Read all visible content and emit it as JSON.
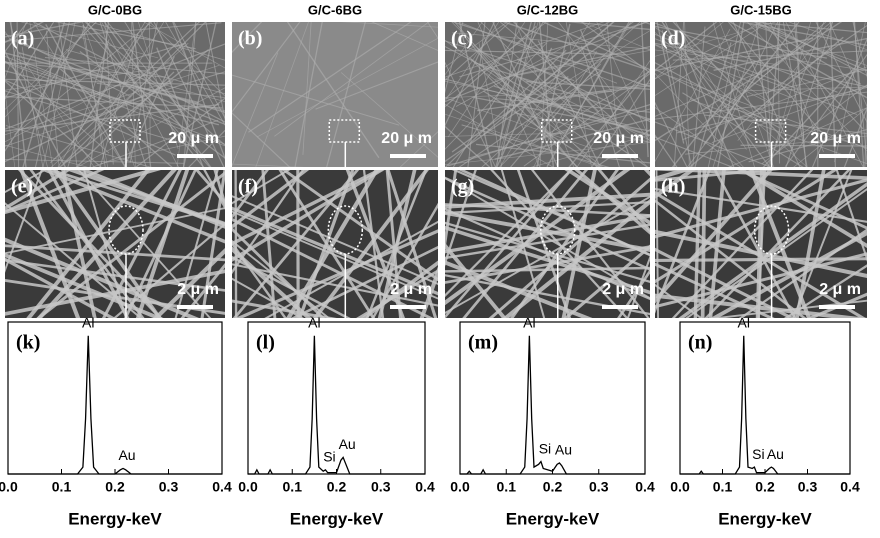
{
  "columns": [
    "G/C-0BG",
    "G/C-6BG",
    "G/C-12BG",
    "G/C-15BG"
  ],
  "images": [
    {
      "label": "(a)",
      "scale": "20 μ m"
    },
    {
      "label": "(b)",
      "scale": "20 μ m"
    },
    {
      "label": "(c)",
      "scale": "20 μ m"
    },
    {
      "label": "(d)",
      "scale": "20 μ m"
    },
    {
      "label": "(e)",
      "scale": "2 μ m"
    },
    {
      "label": "(f)",
      "scale": "2 μ m"
    },
    {
      "label": "(g)",
      "scale": "2 μ m"
    },
    {
      "label": "(h)",
      "scale": "2 μ m"
    }
  ],
  "chart_data": [
    {
      "type": "line",
      "title": "(k)",
      "x_label": "Energy-keV",
      "xlim": [
        0,
        0.4
      ],
      "ylim": [
        0,
        110
      ],
      "xticks": [
        {
          "value": 0,
          "label": "0.0"
        },
        0.1,
        0.2,
        0.3,
        0.4
      ],
      "color": "#000000",
      "x": [
        0,
        0.13,
        0.14,
        0.145,
        0.15,
        0.155,
        0.16,
        0.17,
        0.2,
        0.21,
        0.215,
        0.22,
        0.23,
        0.4
      ],
      "values": [
        0,
        0,
        5,
        40,
        100,
        40,
        5,
        0,
        0,
        3,
        4,
        3,
        0,
        0
      ],
      "annotations": [
        {
          "text": "Al",
          "x": 0.15,
          "y": 100
        },
        {
          "text": "Au",
          "x": 0.215,
          "y": 4
        }
      ]
    },
    {
      "type": "line",
      "title": "(l)",
      "x_label": "Energy-keV",
      "xlim": [
        0,
        0.4
      ],
      "ylim": [
        0,
        110
      ],
      "xticks": [
        {
          "value": 0,
          "label": "0.0"
        },
        0.1,
        0.2,
        0.3,
        0.4
      ],
      "color": "#000000",
      "x": [
        0,
        0.015,
        0.02,
        0.025,
        0.045,
        0.05,
        0.055,
        0.13,
        0.14,
        0.145,
        0.15,
        0.155,
        0.16,
        0.17,
        0.175,
        0.18,
        0.2,
        0.21,
        0.215,
        0.22,
        0.23,
        0.4
      ],
      "values": [
        0,
        0,
        3,
        0,
        0,
        3,
        0,
        0,
        5,
        40,
        100,
        40,
        5,
        2,
        3,
        1,
        1,
        10,
        12,
        8,
        0,
        0
      ],
      "annotations": [
        {
          "text": "Al",
          "x": 0.15,
          "y": 100
        },
        {
          "text": "Si",
          "x": 0.175,
          "y": 3
        },
        {
          "text": "Au",
          "x": 0.215,
          "y": 12
        }
      ]
    },
    {
      "type": "line",
      "title": "(m)",
      "x_label": "Energy-keV",
      "xlim": [
        0,
        0.4
      ],
      "ylim": [
        0,
        110
      ],
      "xticks": [
        {
          "value": 0,
          "label": "0.0"
        },
        0.1,
        0.2,
        0.3,
        0.4
      ],
      "color": "#000000",
      "x": [
        0,
        0.015,
        0.02,
        0.025,
        0.045,
        0.05,
        0.055,
        0.13,
        0.14,
        0.145,
        0.15,
        0.155,
        0.16,
        0.17,
        0.175,
        0.18,
        0.2,
        0.21,
        0.215,
        0.22,
        0.23,
        0.4
      ],
      "values": [
        0,
        0,
        2,
        0,
        0,
        3,
        0,
        0,
        5,
        40,
        100,
        40,
        5,
        7,
        9,
        4,
        2,
        7,
        8,
        6,
        0,
        0
      ],
      "annotations": [
        {
          "text": "Si",
          "x": 0.175,
          "y": 9
        },
        {
          "text": "Al",
          "x": 0.15,
          "y": 100
        },
        {
          "text": "Au",
          "x": 0.215,
          "y": 8
        }
      ]
    },
    {
      "type": "line",
      "title": "(n)",
      "x_label": "Energy-keV",
      "xlim": [
        0,
        0.4
      ],
      "ylim": [
        0,
        110
      ],
      "xticks": [
        {
          "value": 0,
          "label": "0.0"
        },
        0.1,
        0.2,
        0.3,
        0.4
      ],
      "color": "#000000",
      "x": [
        0,
        0.045,
        0.05,
        0.055,
        0.13,
        0.14,
        0.145,
        0.15,
        0.155,
        0.16,
        0.17,
        0.175,
        0.18,
        0.2,
        0.21,
        0.215,
        0.22,
        0.23,
        0.4
      ],
      "values": [
        0,
        0,
        2,
        0,
        0,
        5,
        40,
        100,
        40,
        5,
        4,
        5,
        1,
        1,
        4,
        5,
        4,
        0,
        0
      ],
      "annotations": [
        {
          "text": "Al",
          "x": 0.15,
          "y": 100
        },
        {
          "text": "Si",
          "x": 0.175,
          "y": 5
        },
        {
          "text": "Au",
          "x": 0.215,
          "y": 5
        }
      ]
    }
  ]
}
